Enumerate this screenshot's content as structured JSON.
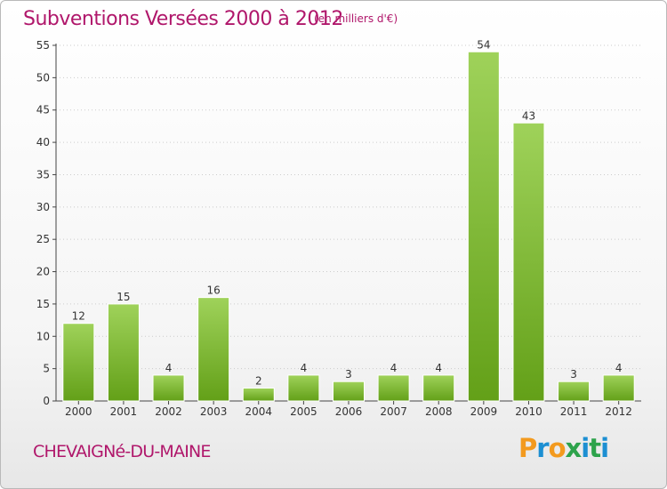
{
  "header": {
    "title": "Subventions Versées 2000 à 2012",
    "unit_note": "(en milliers d'€)"
  },
  "footer": {
    "commune": "CHEVAIGNé-DU-MAINE",
    "logo_letters": [
      "P",
      "r",
      "o",
      "x",
      "i",
      "t",
      "i"
    ],
    "logo_colors": [
      "#f39a1e",
      "#1c8fd2",
      "#f39a1e",
      "#2da34b",
      "#1c8fd2",
      "#2da34b",
      "#1c8fd2"
    ]
  },
  "colors": {
    "bar_light": "#9fd25a",
    "bar_dark": "#63a018",
    "axis": "#444444",
    "grid": "#cccccc",
    "accent": "#b0176b"
  },
  "chart_data": {
    "type": "bar",
    "categories": [
      "2000",
      "2001",
      "2002",
      "2003",
      "2004",
      "2005",
      "2006",
      "2007",
      "2008",
      "2009",
      "2010",
      "2011",
      "2012"
    ],
    "values": [
      12,
      15,
      4,
      16,
      2,
      4,
      3,
      4,
      4,
      54,
      43,
      3,
      4
    ],
    "data_labels": [
      "12",
      "15",
      "4",
      "16",
      "2",
      "4",
      "3",
      "4",
      "4",
      "54",
      "43",
      "3",
      "4"
    ],
    "yticks": [
      0,
      5,
      10,
      15,
      20,
      25,
      30,
      35,
      40,
      45,
      50,
      55
    ],
    "ylim": [
      0,
      55
    ],
    "grid": true,
    "title": "Subventions Versées 2000 à 2012",
    "xlabel": "",
    "ylabel": ""
  }
}
